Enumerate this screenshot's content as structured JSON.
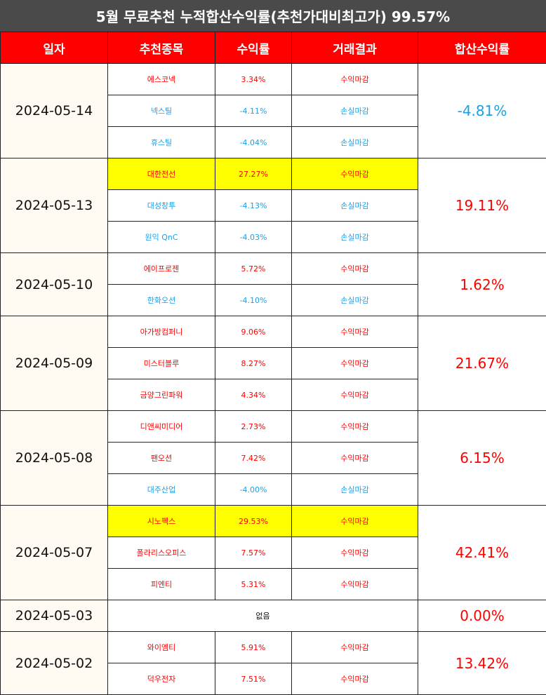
{
  "title": "5월 무료추천 누적합산수익률(추천가대비최고가) 99.57%",
  "headers": [
    "일자",
    "추천종목",
    "수익률",
    "거래결과",
    "합산수익률"
  ],
  "colors": {
    "header_bg": "#ff0000",
    "title_bg": "#4a4a4a",
    "gain": "#ff0000",
    "loss": "#1aa0e8",
    "highlight": "#ffff00"
  },
  "groups": [
    {
      "date": "2024-05-14",
      "total": "-4.81%",
      "total_kind": "loss",
      "rows": [
        {
          "stock": "에스코넥",
          "rate": "3.34%",
          "result": "수익마감",
          "kind": "gain",
          "highlight": false
        },
        {
          "stock": "넥스틸",
          "rate": "-4.11%",
          "result": "손실마감",
          "kind": "loss",
          "highlight": false
        },
        {
          "stock": "휴스틸",
          "rate": "-4.04%",
          "result": "손실마감",
          "kind": "loss",
          "highlight": false
        }
      ]
    },
    {
      "date": "2024-05-13",
      "total": "19.11%",
      "total_kind": "gain",
      "rows": [
        {
          "stock": "대한전선",
          "rate": "27.27%",
          "result": "수익마감",
          "kind": "gain",
          "highlight": true
        },
        {
          "stock": "대성창투",
          "rate": "-4.13%",
          "result": "손실마감",
          "kind": "loss",
          "highlight": false
        },
        {
          "stock": "원익 QnC",
          "rate": "-4.03%",
          "result": "손실마감",
          "kind": "loss",
          "highlight": false
        }
      ]
    },
    {
      "date": "2024-05-10",
      "total": "1.62%",
      "total_kind": "gain",
      "rows": [
        {
          "stock": "에이프로젠",
          "rate": "5.72%",
          "result": "수익마감",
          "kind": "gain",
          "highlight": false
        },
        {
          "stock": "한화오션",
          "rate": "-4.10%",
          "result": "손실마감",
          "kind": "loss",
          "highlight": false
        }
      ]
    },
    {
      "date": "2024-05-09",
      "total": "21.67%",
      "total_kind": "gain",
      "rows": [
        {
          "stock": "아가방컴퍼니",
          "rate": "9.06%",
          "result": "수익마감",
          "kind": "gain",
          "highlight": false
        },
        {
          "stock": "미스터블루",
          "rate": "8.27%",
          "result": "수익마감",
          "kind": "gain",
          "highlight": false
        },
        {
          "stock": "금양그린파워",
          "rate": "4.34%",
          "result": "수익마감",
          "kind": "gain",
          "highlight": false
        }
      ]
    },
    {
      "date": "2024-05-08",
      "total": "6.15%",
      "total_kind": "gain",
      "rows": [
        {
          "stock": "디앤씨미디어",
          "rate": "2.73%",
          "result": "수익마감",
          "kind": "gain",
          "highlight": false
        },
        {
          "stock": "팬오션",
          "rate": "7.42%",
          "result": "수익마감",
          "kind": "gain",
          "highlight": false
        },
        {
          "stock": "대주산업",
          "rate": "-4.00%",
          "result": "손실마감",
          "kind": "loss",
          "highlight": false
        }
      ]
    },
    {
      "date": "2024-05-07",
      "total": "42.41%",
      "total_kind": "gain",
      "rows": [
        {
          "stock": "시노펙스",
          "rate": "29.53%",
          "result": "수익마감",
          "kind": "gain",
          "highlight": true
        },
        {
          "stock": "폴라리스오피스",
          "rate": "7.57%",
          "result": "수익마감",
          "kind": "gain",
          "highlight": false
        },
        {
          "stock": "피엔티",
          "rate": "5.31%",
          "result": "수익마감",
          "kind": "gain",
          "highlight": false
        }
      ]
    },
    {
      "date": "2024-05-03",
      "total": "0.00%",
      "total_kind": "zero",
      "none_text": "없음",
      "rows": []
    },
    {
      "date": "2024-05-02",
      "total": "13.42%",
      "total_kind": "gain",
      "rows": [
        {
          "stock": "와이엠티",
          "rate": "5.91%",
          "result": "수익마감",
          "kind": "gain",
          "highlight": false
        },
        {
          "stock": "덕우전자",
          "rate": "7.51%",
          "result": "수익마감",
          "kind": "gain",
          "highlight": false
        }
      ]
    }
  ]
}
